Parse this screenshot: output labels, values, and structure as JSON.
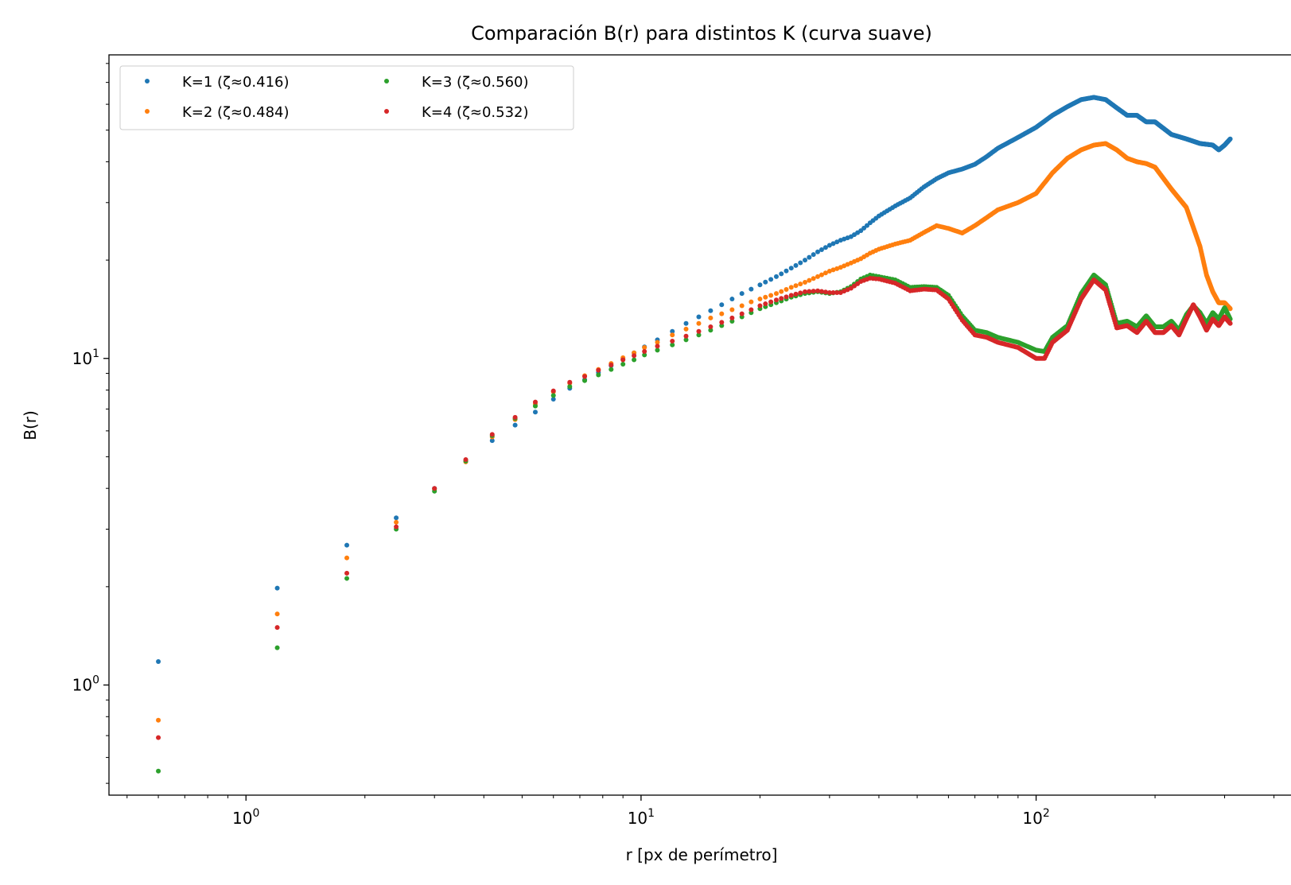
{
  "chart_data": {
    "type": "scatter",
    "title": "Comparación B(r) para distintos K (curva suave)",
    "xlabel": "r [px de perímetro]",
    "ylabel": "B(r)",
    "xscale": "log",
    "yscale": "log",
    "xlim": [
      0.45,
      450
    ],
    "ylim": [
      0.46,
      85
    ],
    "grid": false,
    "legend_position": "upper-left",
    "legend_columns": 2,
    "x_major_ticks": [
      {
        "value": 1,
        "base": "10",
        "exp": "0"
      },
      {
        "value": 10,
        "base": "10",
        "exp": "1"
      },
      {
        "value": 100,
        "base": "10",
        "exp": "2"
      }
    ],
    "y_major_ticks": [
      {
        "value": 1,
        "base": "10",
        "exp": "0"
      },
      {
        "value": 10,
        "base": "10",
        "exp": "1"
      }
    ],
    "series": [
      {
        "name": "K=1 (ζ≈0.416)",
        "color": "#1f77b4",
        "points": [
          [
            0.6,
            1.18
          ],
          [
            1.2,
            1.98
          ],
          [
            1.8,
            2.68
          ],
          [
            2.4,
            3.25
          ],
          [
            3.0,
            4.0
          ],
          [
            3.6,
            4.85
          ],
          [
            4.2,
            5.6
          ],
          [
            4.8,
            6.25
          ],
          [
            5.4,
            6.85
          ],
          [
            6.0,
            7.5
          ],
          [
            6.6,
            8.1
          ],
          [
            7.2,
            8.6
          ],
          [
            7.8,
            9.05
          ],
          [
            8.4,
            9.5
          ],
          [
            9.0,
            9.95
          ],
          [
            9.6,
            10.4
          ],
          [
            10.2,
            10.85
          ],
          [
            11,
            11.4
          ],
          [
            12,
            12.1
          ],
          [
            13,
            12.8
          ],
          [
            14,
            13.4
          ],
          [
            15,
            14.0
          ],
          [
            16,
            14.6
          ],
          [
            17,
            15.2
          ],
          [
            18,
            15.8
          ],
          [
            19,
            16.3
          ],
          [
            20,
            16.8
          ],
          [
            22,
            17.8
          ],
          [
            24,
            18.9
          ],
          [
            26,
            20.0
          ],
          [
            28,
            21.2
          ],
          [
            30,
            22.2
          ],
          [
            32,
            23.0
          ],
          [
            34,
            23.6
          ],
          [
            36,
            24.6
          ],
          [
            38,
            26.0
          ],
          [
            40,
            27.3
          ],
          [
            44,
            29.3
          ],
          [
            48,
            31.0
          ],
          [
            52,
            33.5
          ],
          [
            56,
            35.5
          ],
          [
            60,
            37.0
          ],
          [
            65,
            38.0
          ],
          [
            70,
            39.3
          ],
          [
            75,
            41.5
          ],
          [
            80,
            44.0
          ],
          [
            90,
            47.5
          ],
          [
            100,
            51.0
          ],
          [
            110,
            55.5
          ],
          [
            120,
            59.0
          ],
          [
            130,
            62.0
          ],
          [
            140,
            63.0
          ],
          [
            150,
            62.0
          ],
          [
            160,
            58.5
          ],
          [
            170,
            55.5
          ],
          [
            180,
            55.5
          ],
          [
            190,
            53.0
          ],
          [
            200,
            53.0
          ],
          [
            220,
            48.5
          ],
          [
            240,
            47.0
          ],
          [
            260,
            45.5
          ],
          [
            280,
            45.0
          ],
          [
            290,
            43.5
          ],
          [
            300,
            45.0
          ],
          [
            310,
            47.0
          ]
        ]
      },
      {
        "name": "K=2 (ζ≈0.484)",
        "color": "#ff7f0e",
        "points": [
          [
            0.6,
            0.78
          ],
          [
            1.2,
            1.65
          ],
          [
            1.8,
            2.45
          ],
          [
            2.4,
            3.15
          ],
          [
            3.0,
            3.98
          ],
          [
            3.6,
            4.82
          ],
          [
            4.2,
            5.75
          ],
          [
            4.8,
            6.5
          ],
          [
            5.4,
            7.25
          ],
          [
            6.0,
            7.9
          ],
          [
            6.6,
            8.4
          ],
          [
            7.2,
            8.85
          ],
          [
            7.8,
            9.25
          ],
          [
            8.4,
            9.65
          ],
          [
            9.0,
            10.05
          ],
          [
            9.6,
            10.4
          ],
          [
            10.2,
            10.8
          ],
          [
            11,
            11.2
          ],
          [
            12,
            11.8
          ],
          [
            13,
            12.3
          ],
          [
            14,
            12.8
          ],
          [
            15,
            13.3
          ],
          [
            16,
            13.7
          ],
          [
            17,
            14.1
          ],
          [
            18,
            14.5
          ],
          [
            19,
            14.9
          ],
          [
            20,
            15.2
          ],
          [
            22,
            15.8
          ],
          [
            24,
            16.5
          ],
          [
            26,
            17.1
          ],
          [
            28,
            17.8
          ],
          [
            30,
            18.5
          ],
          [
            32,
            19.0
          ],
          [
            34,
            19.6
          ],
          [
            36,
            20.2
          ],
          [
            38,
            21.0
          ],
          [
            40,
            21.6
          ],
          [
            44,
            22.4
          ],
          [
            48,
            23.0
          ],
          [
            52,
            24.3
          ],
          [
            56,
            25.5
          ],
          [
            60,
            25.0
          ],
          [
            65,
            24.2
          ],
          [
            70,
            25.5
          ],
          [
            75,
            27.0
          ],
          [
            80,
            28.5
          ],
          [
            90,
            30.0
          ],
          [
            100,
            32.0
          ],
          [
            110,
            37.0
          ],
          [
            120,
            41.0
          ],
          [
            130,
            43.5
          ],
          [
            140,
            45.0
          ],
          [
            150,
            45.5
          ],
          [
            160,
            43.5
          ],
          [
            170,
            41.0
          ],
          [
            180,
            40.0
          ],
          [
            190,
            39.5
          ],
          [
            200,
            38.5
          ],
          [
            220,
            33.0
          ],
          [
            240,
            29.0
          ],
          [
            260,
            22.0
          ],
          [
            270,
            18.0
          ],
          [
            280,
            16.0
          ],
          [
            290,
            14.8
          ],
          [
            300,
            14.8
          ],
          [
            310,
            14.2
          ]
        ]
      },
      {
        "name": "K=3 (ζ≈0.560)",
        "color": "#2ca02c",
        "points": [
          [
            0.6,
            0.545
          ],
          [
            1.2,
            1.3
          ],
          [
            1.8,
            2.12
          ],
          [
            2.4,
            3.0
          ],
          [
            3.0,
            3.92
          ],
          [
            3.6,
            4.85
          ],
          [
            4.2,
            5.8
          ],
          [
            4.8,
            6.55
          ],
          [
            5.4,
            7.15
          ],
          [
            6.0,
            7.7
          ],
          [
            6.6,
            8.2
          ],
          [
            7.2,
            8.55
          ],
          [
            7.8,
            8.9
          ],
          [
            8.4,
            9.25
          ],
          [
            9.0,
            9.6
          ],
          [
            9.6,
            9.9
          ],
          [
            10.2,
            10.25
          ],
          [
            11,
            10.6
          ],
          [
            12,
            11.0
          ],
          [
            13,
            11.4
          ],
          [
            14,
            11.8
          ],
          [
            15,
            12.2
          ],
          [
            16,
            12.6
          ],
          [
            17,
            13.0
          ],
          [
            18,
            13.4
          ],
          [
            19,
            13.8
          ],
          [
            20,
            14.2
          ],
          [
            22,
            14.8
          ],
          [
            24,
            15.4
          ],
          [
            26,
            15.8
          ],
          [
            28,
            16.0
          ],
          [
            30,
            15.8
          ],
          [
            32,
            16.0
          ],
          [
            34,
            16.6
          ],
          [
            36,
            17.5
          ],
          [
            38,
            18.0
          ],
          [
            40,
            17.8
          ],
          [
            44,
            17.4
          ],
          [
            48,
            16.5
          ],
          [
            52,
            16.6
          ],
          [
            56,
            16.5
          ],
          [
            60,
            15.6
          ],
          [
            65,
            13.5
          ],
          [
            70,
            12.2
          ],
          [
            75,
            12.0
          ],
          [
            80,
            11.6
          ],
          [
            90,
            11.2
          ],
          [
            100,
            10.6
          ],
          [
            105,
            10.5
          ],
          [
            110,
            11.6
          ],
          [
            120,
            12.6
          ],
          [
            130,
            15.8
          ],
          [
            140,
            18.0
          ],
          [
            150,
            16.8
          ],
          [
            160,
            12.8
          ],
          [
            170,
            13.0
          ],
          [
            180,
            12.5
          ],
          [
            190,
            13.5
          ],
          [
            200,
            12.5
          ],
          [
            210,
            12.5
          ],
          [
            220,
            13.0
          ],
          [
            230,
            12.2
          ],
          [
            240,
            13.6
          ],
          [
            250,
            14.5
          ],
          [
            260,
            13.8
          ],
          [
            270,
            12.8
          ],
          [
            280,
            13.8
          ],
          [
            290,
            13.2
          ],
          [
            300,
            14.3
          ],
          [
            310,
            13.2
          ]
        ]
      },
      {
        "name": "K=4 (ζ≈0.532)",
        "color": "#d62728",
        "points": [
          [
            0.6,
            0.69
          ],
          [
            1.2,
            1.5
          ],
          [
            1.8,
            2.2
          ],
          [
            2.4,
            3.05
          ],
          [
            3.0,
            4.0
          ],
          [
            3.6,
            4.9
          ],
          [
            4.2,
            5.85
          ],
          [
            4.8,
            6.6
          ],
          [
            5.4,
            7.35
          ],
          [
            6.0,
            7.95
          ],
          [
            6.6,
            8.45
          ],
          [
            7.2,
            8.8
          ],
          [
            7.8,
            9.2
          ],
          [
            8.4,
            9.55
          ],
          [
            9.0,
            9.9
          ],
          [
            9.6,
            10.2
          ],
          [
            10.2,
            10.5
          ],
          [
            11,
            10.9
          ],
          [
            12,
            11.3
          ],
          [
            13,
            11.7
          ],
          [
            14,
            12.1
          ],
          [
            15,
            12.5
          ],
          [
            16,
            12.9
          ],
          [
            17,
            13.3
          ],
          [
            18,
            13.7
          ],
          [
            19,
            14.1
          ],
          [
            20,
            14.5
          ],
          [
            22,
            15.1
          ],
          [
            24,
            15.6
          ],
          [
            26,
            16.0
          ],
          [
            28,
            16.1
          ],
          [
            30,
            15.9
          ],
          [
            32,
            15.9
          ],
          [
            34,
            16.4
          ],
          [
            36,
            17.2
          ],
          [
            38,
            17.6
          ],
          [
            40,
            17.5
          ],
          [
            44,
            17.0
          ],
          [
            48,
            16.1
          ],
          [
            52,
            16.3
          ],
          [
            56,
            16.2
          ],
          [
            60,
            15.2
          ],
          [
            65,
            13.1
          ],
          [
            70,
            11.8
          ],
          [
            75,
            11.6
          ],
          [
            80,
            11.2
          ],
          [
            90,
            10.8
          ],
          [
            100,
            10.0
          ],
          [
            105,
            10.0
          ],
          [
            110,
            11.2
          ],
          [
            120,
            12.2
          ],
          [
            130,
            15.2
          ],
          [
            140,
            17.4
          ],
          [
            150,
            16.2
          ],
          [
            160,
            12.4
          ],
          [
            170,
            12.6
          ],
          [
            180,
            12.0
          ],
          [
            190,
            13.0
          ],
          [
            200,
            12.0
          ],
          [
            210,
            12.0
          ],
          [
            220,
            12.6
          ],
          [
            230,
            11.8
          ],
          [
            240,
            13.2
          ],
          [
            250,
            14.6
          ],
          [
            260,
            13.4
          ],
          [
            270,
            12.2
          ],
          [
            280,
            13.2
          ],
          [
            290,
            12.6
          ],
          [
            300,
            13.4
          ],
          [
            310,
            12.8
          ]
        ]
      }
    ]
  }
}
